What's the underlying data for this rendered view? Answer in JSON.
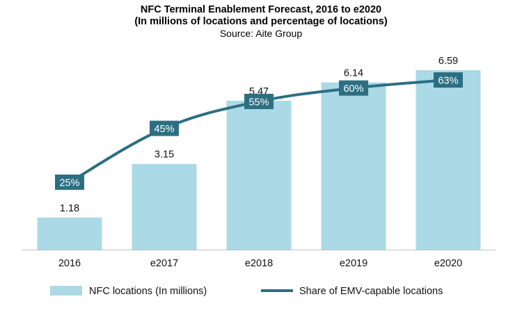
{
  "chart_data": {
    "type": "bar",
    "title": "NFC Terminal Enablement Forecast, 2016 to e2020",
    "subtitle": "(In millions of locations and percentage of locations)",
    "source": "Source: Aite Group",
    "categories": [
      "2016",
      "e2017",
      "e2018",
      "e2019",
      "e2020"
    ],
    "series": [
      {
        "name": "NFC locations (In millions)",
        "type": "bar",
        "values": [
          1.18,
          3.15,
          5.47,
          6.14,
          6.59
        ],
        "labels": [
          "1.18",
          "3.15",
          "5.47",
          "6.14",
          "6.59"
        ],
        "color": "#abd9e6"
      },
      {
        "name": "Share of EMV-capable locations",
        "type": "line",
        "values": [
          25,
          45,
          55,
          60,
          63
        ],
        "labels": [
          "25%",
          "45%",
          "55%",
          "60%",
          "63%"
        ],
        "color": "#2c6f82"
      }
    ],
    "ylim": [
      0,
      6.59
    ],
    "y2lim": [
      0,
      100
    ],
    "grid": false,
    "legend_position": "bottom"
  }
}
